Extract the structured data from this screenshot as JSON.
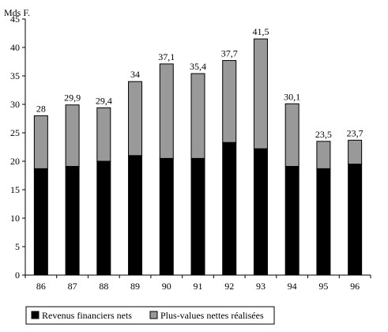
{
  "chart_data": {
    "type": "bar",
    "stacked": true,
    "ylabel": "Mds F.",
    "categories": [
      "86",
      "87",
      "88",
      "89",
      "90",
      "91",
      "92",
      "93",
      "94",
      "95",
      "96"
    ],
    "series": [
      {
        "name": "Revenus financiers nets",
        "color": "#000000",
        "values": [
          18.7,
          19.1,
          20.0,
          21.0,
          20.5,
          20.5,
          23.3,
          22.2,
          19.1,
          18.7,
          19.5
        ]
      },
      {
        "name": "Plus-values nettes réalisées",
        "color": "#999999",
        "values": [
          9.3,
          10.8,
          9.4,
          13.0,
          16.6,
          14.9,
          14.4,
          19.3,
          11.0,
          4.8,
          4.2
        ]
      }
    ],
    "totals": [
      "28",
      "29,9",
      "29,4",
      "34",
      "37,1",
      "35,4",
      "37,7",
      "41,5",
      "30,1",
      "23,5",
      "23,7"
    ],
    "ylim": [
      0,
      45
    ],
    "yticks": [
      0,
      5,
      10,
      15,
      20,
      25,
      30,
      35,
      40,
      45
    ],
    "grid": false,
    "legend_position": "bottom"
  }
}
